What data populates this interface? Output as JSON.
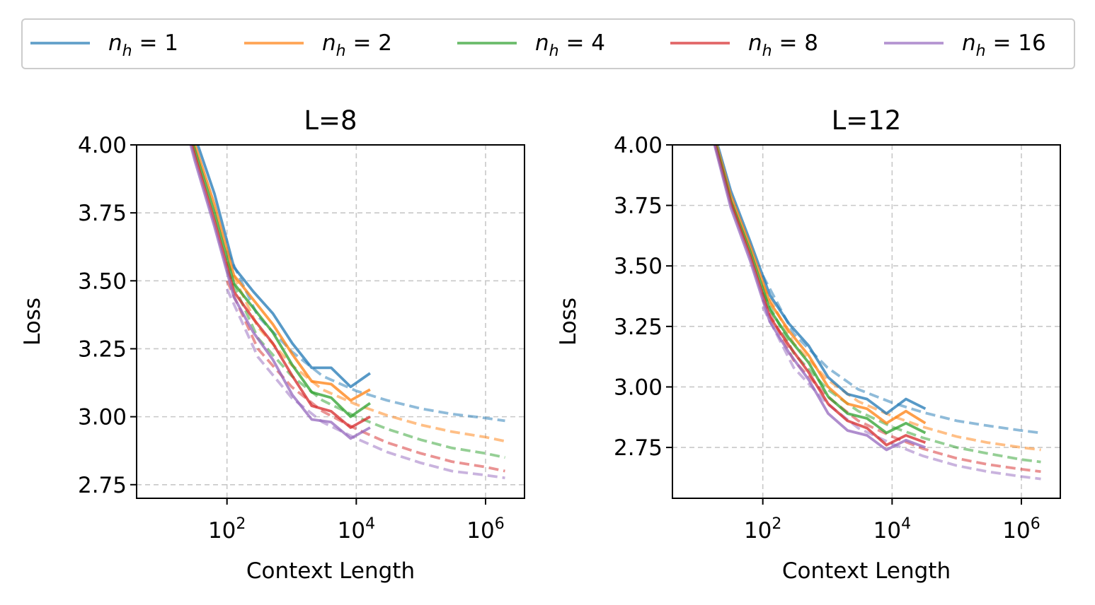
{
  "legend": {
    "placement": "top",
    "entries": [
      {
        "label": "n_h = 1",
        "sym": "n",
        "sub": "h",
        "rhs": "= 1",
        "color": "#1f77b4"
      },
      {
        "label": "n_h = 2",
        "sym": "n",
        "sub": "h",
        "rhs": "= 2",
        "color": "#ff7f0e"
      },
      {
        "label": "n_h = 4",
        "sym": "n",
        "sub": "h",
        "rhs": "= 4",
        "color": "#2ca02c"
      },
      {
        "label": "n_h = 8",
        "sym": "n",
        "sub": "h",
        "rhs": "= 8",
        "color": "#d62728"
      },
      {
        "label": "n_h = 16",
        "sym": "n",
        "sub": "h",
        "rhs": "= 16",
        "color": "#9467bd"
      }
    ]
  },
  "chart_data": [
    {
      "type": "line",
      "title": "L=8",
      "xlabel": "Context Length",
      "ylabel": "Loss",
      "xscale": "log",
      "xlim": [
        4,
        4000000
      ],
      "ylim": [
        2.7,
        4.0
      ],
      "yticks": [
        "4.00",
        "3.75",
        "3.50",
        "3.25",
        "3.00",
        "2.75"
      ],
      "yticks_values": [
        4.0,
        3.75,
        3.5,
        3.25,
        3.0,
        2.75
      ],
      "xticks": [
        {
          "base": "10",
          "exp": "2",
          "value": 100
        },
        {
          "base": "10",
          "exp": "4",
          "value": 10000
        },
        {
          "base": "10",
          "exp": "6",
          "value": 1000000
        }
      ],
      "grid": true,
      "x": [
        16,
        32,
        64,
        128,
        256,
        512,
        1024,
        2048,
        4096,
        8192,
        16384
      ],
      "series": [
        {
          "name": "n_h = 1",
          "color": "#1f77b4",
          "values": [
            4.26,
            4.03,
            3.82,
            3.55,
            3.46,
            3.38,
            3.27,
            3.18,
            3.18,
            3.11,
            3.16
          ],
          "fit": [
            [
              100,
              3.61
            ],
            [
              300,
              3.37
            ],
            [
              1000,
              3.24
            ],
            [
              3000,
              3.15
            ],
            [
              10000,
              3.095
            ],
            [
              30000,
              3.06
            ],
            [
              100000,
              3.03
            ],
            [
              300000,
              3.01
            ],
            [
              1000000,
              2.995
            ],
            [
              2000000,
              2.985
            ]
          ]
        },
        {
          "name": "n_h = 2",
          "color": "#ff7f0e",
          "values": [
            4.24,
            4.0,
            3.78,
            3.52,
            3.43,
            3.34,
            3.23,
            3.13,
            3.12,
            3.06,
            3.1
          ],
          "fit": [
            [
              100,
              3.57
            ],
            [
              300,
              3.33
            ],
            [
              1000,
              3.19
            ],
            [
              3000,
              3.1
            ],
            [
              10000,
              3.045
            ],
            [
              30000,
              3.005
            ],
            [
              100000,
              2.97
            ],
            [
              300000,
              2.945
            ],
            [
              1000000,
              2.925
            ],
            [
              2000000,
              2.91
            ]
          ]
        },
        {
          "name": "n_h = 4",
          "color": "#2ca02c",
          "values": [
            4.23,
            3.98,
            3.75,
            3.49,
            3.4,
            3.31,
            3.19,
            3.09,
            3.07,
            3.0,
            3.05
          ],
          "fit": [
            [
              100,
              3.54
            ],
            [
              300,
              3.29
            ],
            [
              1000,
              3.15
            ],
            [
              3000,
              3.06
            ],
            [
              10000,
              3.0
            ],
            [
              30000,
              2.955
            ],
            [
              100000,
              2.915
            ],
            [
              300000,
              2.885
            ],
            [
              1000000,
              2.865
            ],
            [
              2000000,
              2.85
            ]
          ]
        },
        {
          "name": "n_h = 8",
          "color": "#d62728",
          "values": [
            4.22,
            3.96,
            3.72,
            3.46,
            3.36,
            3.27,
            3.15,
            3.04,
            3.02,
            2.96,
            3.0
          ],
          "fit": [
            [
              100,
              3.5
            ],
            [
              300,
              3.25
            ],
            [
              1000,
              3.11
            ],
            [
              3000,
              3.02
            ],
            [
              10000,
              2.955
            ],
            [
              30000,
              2.905
            ],
            [
              100000,
              2.865
            ],
            [
              300000,
              2.835
            ],
            [
              1000000,
              2.815
            ],
            [
              2000000,
              2.8
            ]
          ]
        },
        {
          "name": "n_h = 16",
          "color": "#9467bd",
          "values": [
            4.21,
            3.94,
            3.7,
            3.44,
            3.31,
            3.21,
            3.08,
            2.99,
            2.98,
            2.92,
            2.96
          ],
          "fit": [
            [
              100,
              3.47
            ],
            [
              300,
              3.22
            ],
            [
              1000,
              3.07
            ],
            [
              3000,
              2.98
            ],
            [
              10000,
              2.92
            ],
            [
              30000,
              2.87
            ],
            [
              100000,
              2.83
            ],
            [
              300000,
              2.8
            ],
            [
              1000000,
              2.785
            ],
            [
              2000000,
              2.775
            ]
          ]
        }
      ]
    },
    {
      "type": "line",
      "title": "L=12",
      "xlabel": "Context Length",
      "ylabel": "Loss",
      "xscale": "log",
      "xlim": [
        4,
        4000000
      ],
      "ylim": [
        2.54,
        4.0
      ],
      "yticks": [
        "4.00",
        "3.75",
        "3.50",
        "3.25",
        "3.00",
        "2.75"
      ],
      "yticks_values": [
        4.0,
        3.75,
        3.5,
        3.25,
        3.0,
        2.75
      ],
      "xticks": [
        {
          "base": "10",
          "exp": "2",
          "value": 100
        },
        {
          "base": "10",
          "exp": "4",
          "value": 10000
        },
        {
          "base": "10",
          "exp": "6",
          "value": 1000000
        }
      ],
      "grid": true,
      "x": [
        16,
        32,
        64,
        128,
        256,
        512,
        1024,
        2048,
        4096,
        8192,
        16384,
        32768
      ],
      "series": [
        {
          "name": "n_h = 1",
          "color": "#1f77b4",
          "values": [
            4.09,
            3.81,
            3.6,
            3.38,
            3.26,
            3.17,
            3.04,
            2.97,
            2.95,
            2.89,
            2.95,
            2.91
          ],
          "fit": [
            [
              100,
              3.46
            ],
            [
              300,
              3.22
            ],
            [
              1000,
              3.08
            ],
            [
              3000,
              2.99
            ],
            [
              10000,
              2.935
            ],
            [
              30000,
              2.895
            ],
            [
              100000,
              2.86
            ],
            [
              300000,
              2.84
            ],
            [
              1000000,
              2.82
            ],
            [
              2000000,
              2.81
            ]
          ]
        },
        {
          "name": "n_h = 2",
          "color": "#ff7f0e",
          "values": [
            4.08,
            3.79,
            3.58,
            3.35,
            3.23,
            3.13,
            3.0,
            2.93,
            2.91,
            2.85,
            2.9,
            2.85
          ],
          "fit": [
            [
              100,
              3.42
            ],
            [
              300,
              3.18
            ],
            [
              1000,
              3.03
            ],
            [
              3000,
              2.94
            ],
            [
              10000,
              2.88
            ],
            [
              30000,
              2.835
            ],
            [
              100000,
              2.795
            ],
            [
              300000,
              2.77
            ],
            [
              1000000,
              2.75
            ],
            [
              2000000,
              2.74
            ]
          ]
        },
        {
          "name": "n_h = 4",
          "color": "#2ca02c",
          "values": [
            4.07,
            3.77,
            3.56,
            3.32,
            3.2,
            3.1,
            2.96,
            2.89,
            2.87,
            2.81,
            2.85,
            2.81
          ],
          "fit": [
            [
              100,
              3.39
            ],
            [
              300,
              3.14
            ],
            [
              1000,
              2.99
            ],
            [
              3000,
              2.9
            ],
            [
              10000,
              2.835
            ],
            [
              30000,
              2.79
            ],
            [
              100000,
              2.75
            ],
            [
              300000,
              2.725
            ],
            [
              1000000,
              2.7
            ],
            [
              2000000,
              2.69
            ]
          ]
        },
        {
          "name": "n_h = 8",
          "color": "#d62728",
          "values": [
            4.06,
            3.76,
            3.54,
            3.29,
            3.17,
            3.06,
            2.93,
            2.86,
            2.83,
            2.76,
            2.8,
            2.77
          ],
          "fit": [
            [
              100,
              3.36
            ],
            [
              300,
              3.11
            ],
            [
              1000,
              2.96
            ],
            [
              3000,
              2.86
            ],
            [
              10000,
              2.795
            ],
            [
              30000,
              2.745
            ],
            [
              100000,
              2.705
            ],
            [
              300000,
              2.68
            ],
            [
              1000000,
              2.66
            ],
            [
              2000000,
              2.65
            ]
          ]
        },
        {
          "name": "n_h = 16",
          "color": "#9467bd",
          "values": [
            4.05,
            3.74,
            3.52,
            3.27,
            3.14,
            3.03,
            2.89,
            2.82,
            2.8,
            2.74,
            2.78,
            2.75
          ],
          "fit": [
            [
              100,
              3.33
            ],
            [
              300,
              3.08
            ],
            [
              1000,
              2.93
            ],
            [
              3000,
              2.83
            ],
            [
              10000,
              2.765
            ],
            [
              30000,
              2.715
            ],
            [
              100000,
              2.675
            ],
            [
              300000,
              2.65
            ],
            [
              1000000,
              2.63
            ],
            [
              2000000,
              2.62
            ]
          ]
        }
      ]
    }
  ]
}
